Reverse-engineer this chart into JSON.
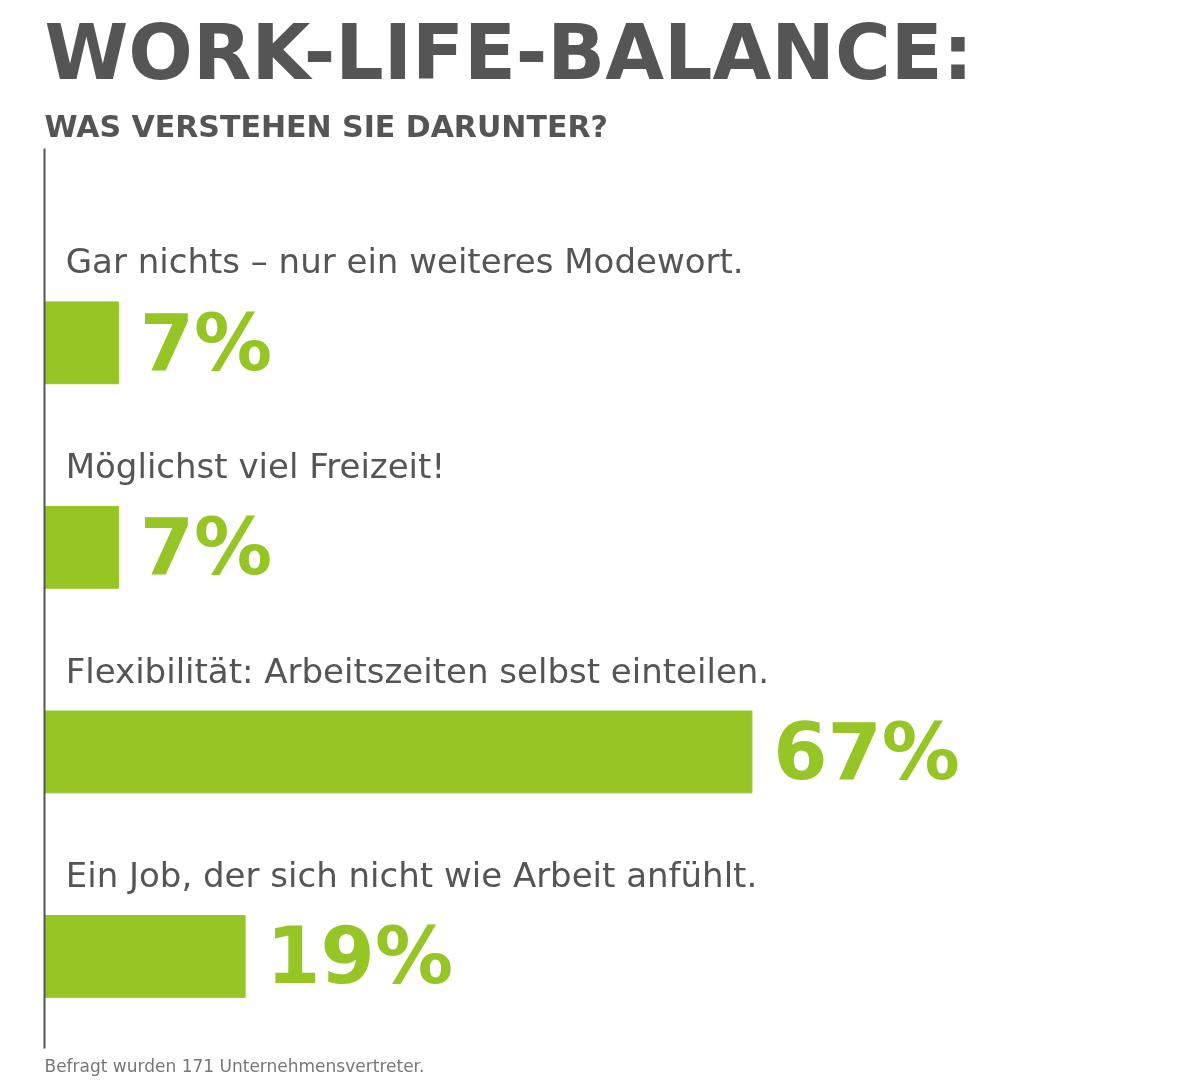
{
  "chart_data": {
    "type": "bar",
    "orientation": "horizontal",
    "title": "WORK-LIFE-BALANCE:",
    "subtitle": "WAS VERSTEHEN SIE DARUNTER?",
    "categories": [
      "Gar nichts – nur ein weiteres Modewort.",
      "Möglichst viel Freizeit!",
      "Flexibilität: Arbeitszeiten selbst einteilen.",
      "Ein Job, der sich nicht wie Arbeit anfühlt."
    ],
    "values": [
      7,
      7,
      67,
      19
    ],
    "color": "#95c626",
    "value_labels": [
      "7%",
      "7%",
      "67%",
      "19%"
    ],
    "annotations": [
      "Befragt wurden 171 Unternehmensvertreter."
    ],
    "grid": false
  }
}
